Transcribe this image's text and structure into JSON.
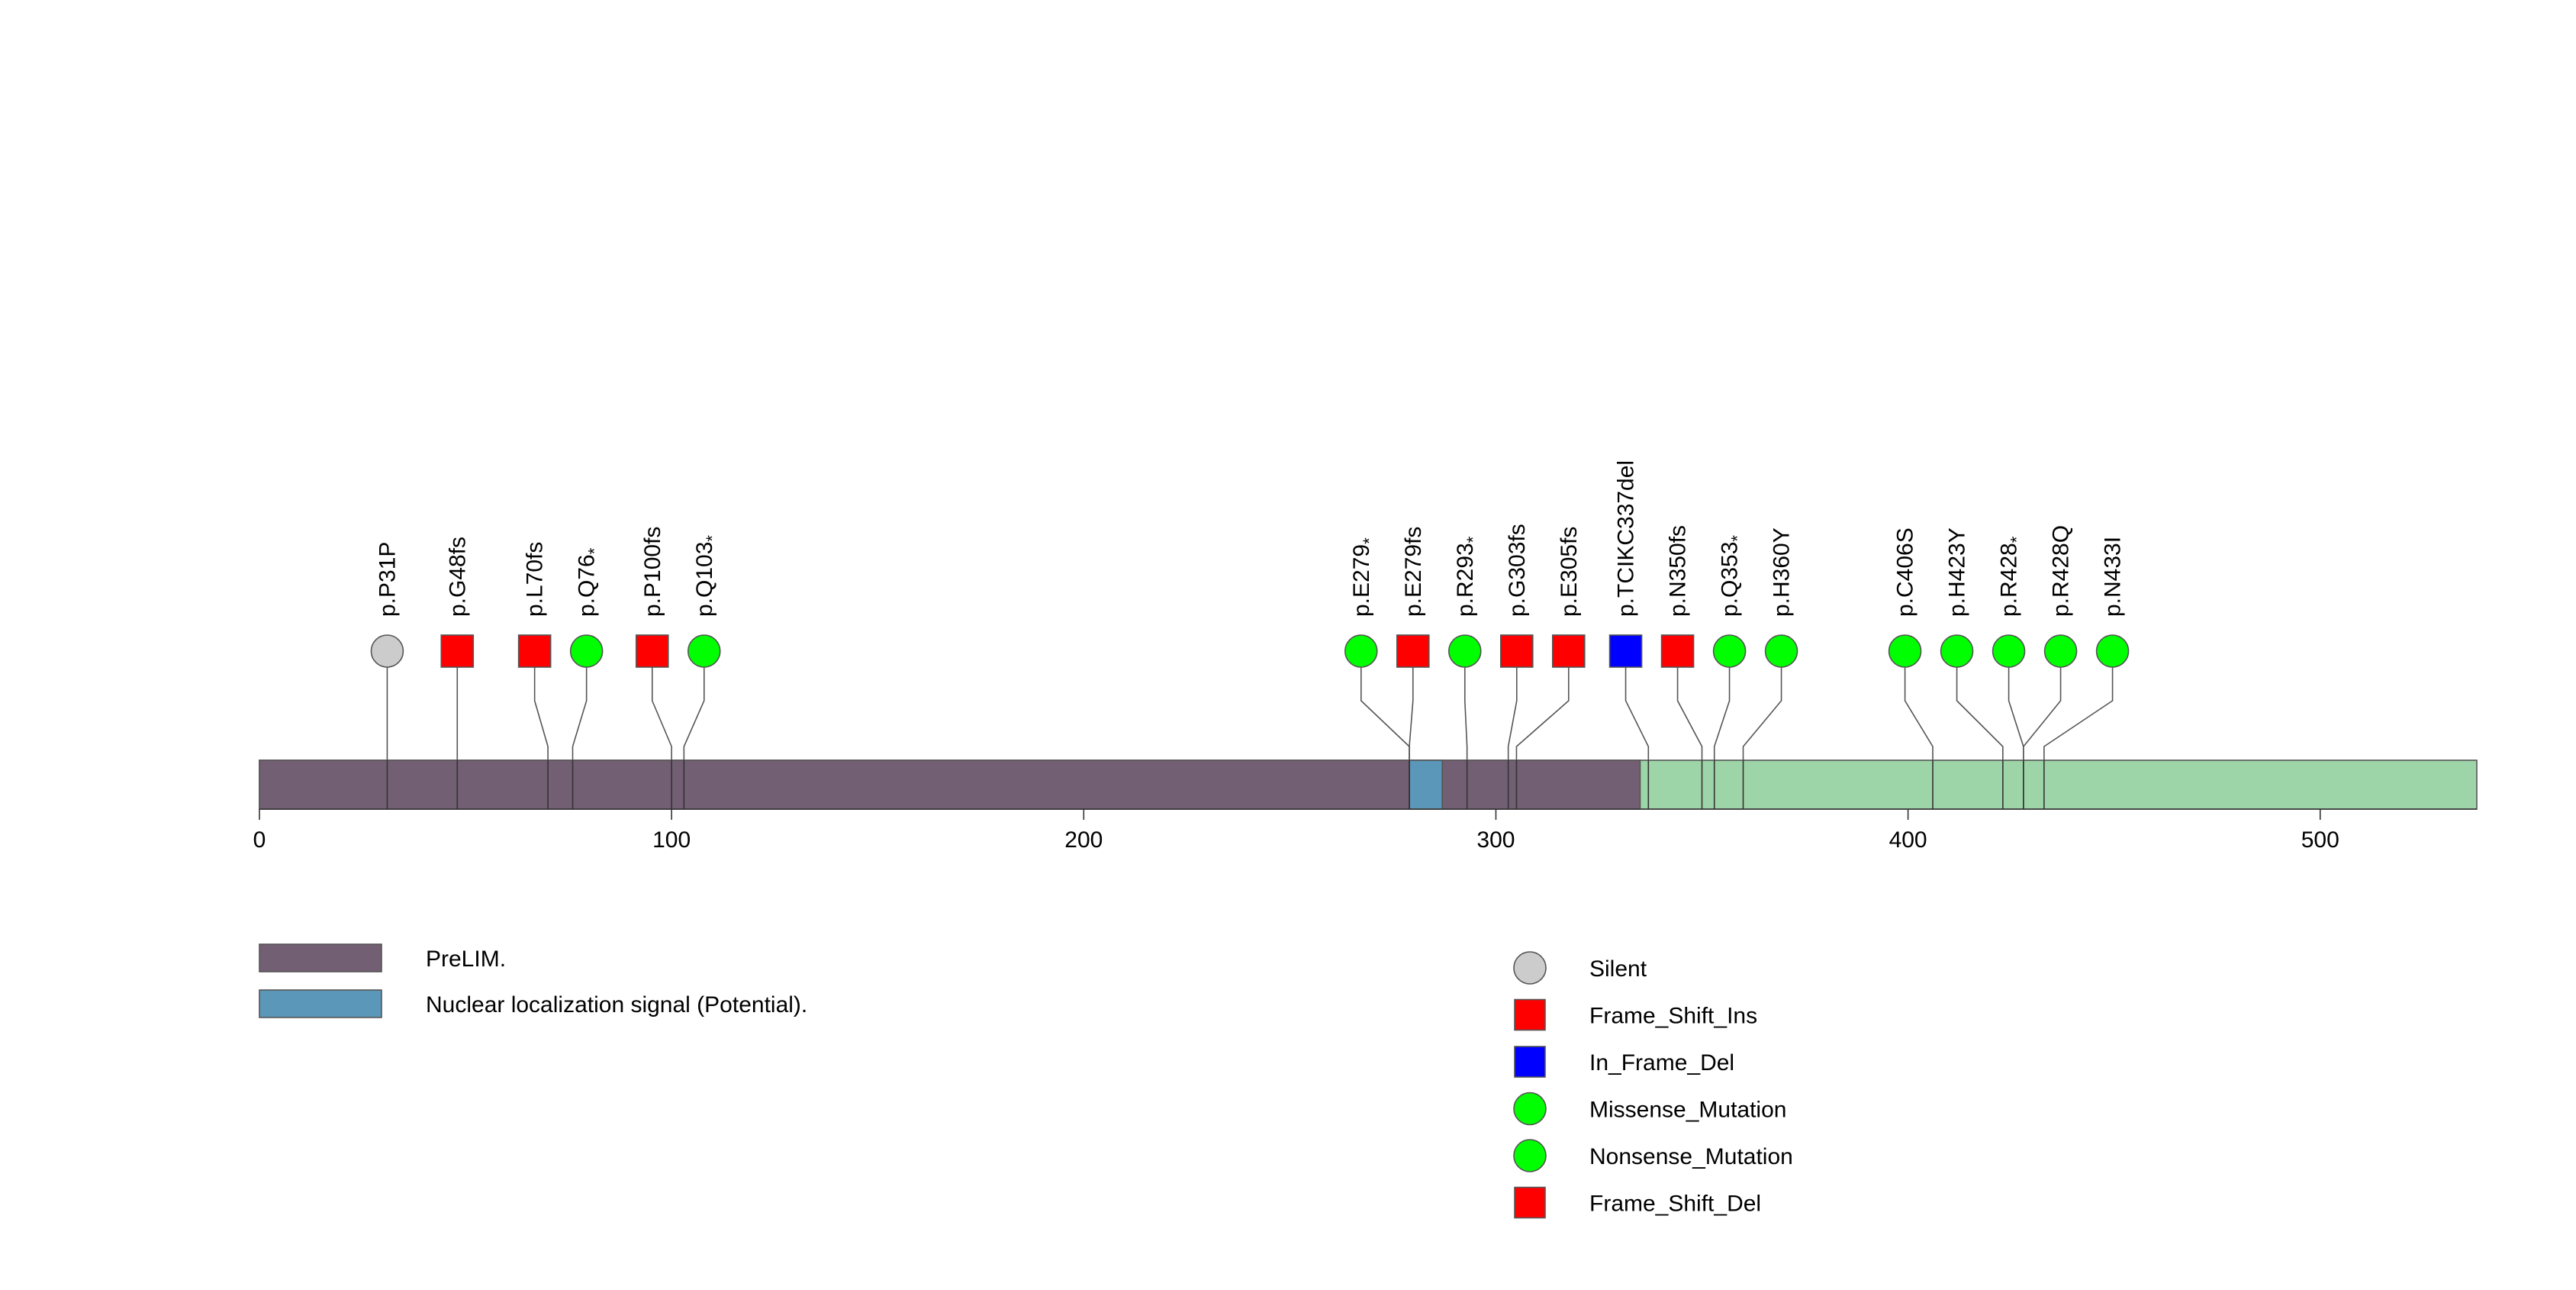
{
  "chart_data": {
    "type": "lollipop",
    "protein_length": 538,
    "xlim": [
      0,
      538
    ],
    "ticks": [
      0,
      100,
      200,
      300,
      400,
      500
    ],
    "backbone_color": "#9ed5a8",
    "domains": [
      {
        "name": "PreLIM.",
        "start": 0,
        "end": 335,
        "color": "#735f73"
      },
      {
        "name": "Nuclear localization signal (Potential).",
        "start": 279,
        "end": 287,
        "color": "#5b97b8"
      }
    ],
    "mutations": [
      {
        "label": "p.P31P",
        "pos": 31,
        "type": "Silent",
        "shape": "circle",
        "color": "#cccccc"
      },
      {
        "label": "p.G48fs",
        "pos": 48,
        "type": "Frame_Shift_Ins",
        "shape": "square",
        "color": "#ff0000"
      },
      {
        "label": "p.L70fs",
        "pos": 70,
        "type": "Frame_Shift_Del",
        "shape": "square",
        "color": "#ff0000"
      },
      {
        "label": "p.Q76*",
        "pos": 76,
        "type": "Nonsense_Mutation",
        "shape": "circle",
        "color": "#00ff00"
      },
      {
        "label": "p.P100fs",
        "pos": 100,
        "type": "Frame_Shift_Del",
        "shape": "square",
        "color": "#ff0000"
      },
      {
        "label": "p.Q103*",
        "pos": 103,
        "type": "Nonsense_Mutation",
        "shape": "circle",
        "color": "#00ff00"
      },
      {
        "label": "p.E279*",
        "pos": 279,
        "type": "Nonsense_Mutation",
        "shape": "circle",
        "color": "#00ff00"
      },
      {
        "label": "p.E279fs",
        "pos": 279,
        "type": "Frame_Shift_Del",
        "shape": "square",
        "color": "#ff0000"
      },
      {
        "label": "p.R293*",
        "pos": 293,
        "type": "Nonsense_Mutation",
        "shape": "circle",
        "color": "#00ff00"
      },
      {
        "label": "p.G303fs",
        "pos": 303,
        "type": "Frame_Shift_Del",
        "shape": "square",
        "color": "#ff0000"
      },
      {
        "label": "p.E305fs",
        "pos": 305,
        "type": "Frame_Shift_Del",
        "shape": "square",
        "color": "#ff0000"
      },
      {
        "label": "p.TCIKC337del",
        "pos": 337,
        "type": "In_Frame_Del",
        "shape": "square",
        "color": "#0000ff"
      },
      {
        "label": "p.N350fs",
        "pos": 350,
        "type": "Frame_Shift_Del",
        "shape": "square",
        "color": "#ff0000"
      },
      {
        "label": "p.Q353*",
        "pos": 353,
        "type": "Nonsense_Mutation",
        "shape": "circle",
        "color": "#00ff00"
      },
      {
        "label": "p.H360Y",
        "pos": 360,
        "type": "Missense_Mutation",
        "shape": "circle",
        "color": "#00ff00"
      },
      {
        "label": "p.C406S",
        "pos": 406,
        "type": "Missense_Mutation",
        "shape": "circle",
        "color": "#00ff00"
      },
      {
        "label": "p.H423Y",
        "pos": 423,
        "type": "Missense_Mutation",
        "shape": "circle",
        "color": "#00ff00"
      },
      {
        "label": "p.R428*",
        "pos": 428,
        "type": "Nonsense_Mutation",
        "shape": "circle",
        "color": "#00ff00"
      },
      {
        "label": "p.R428Q",
        "pos": 428,
        "type": "Missense_Mutation",
        "shape": "circle",
        "color": "#00ff00"
      },
      {
        "label": "p.N433I",
        "pos": 433,
        "type": "Missense_Mutation",
        "shape": "circle",
        "color": "#00ff00"
      }
    ],
    "legend_domains": [
      {
        "label": "PreLIM.",
        "color": "#735f73"
      },
      {
        "label": "Nuclear localization signal (Potential).",
        "color": "#5b97b8"
      }
    ],
    "legend_mutations": [
      {
        "label": "Silent",
        "shape": "circle",
        "color": "#cccccc"
      },
      {
        "label": "Frame_Shift_Ins",
        "shape": "square",
        "color": "#ff0000"
      },
      {
        "label": "In_Frame_Del",
        "shape": "square",
        "color": "#0000ff"
      },
      {
        "label": "Missense_Mutation",
        "shape": "circle",
        "color": "#00ff00"
      },
      {
        "label": "Nonsense_Mutation",
        "shape": "circle",
        "color": "#00ff00"
      },
      {
        "label": "Frame_Shift_Del",
        "shape": "square",
        "color": "#ff0000"
      }
    ]
  }
}
